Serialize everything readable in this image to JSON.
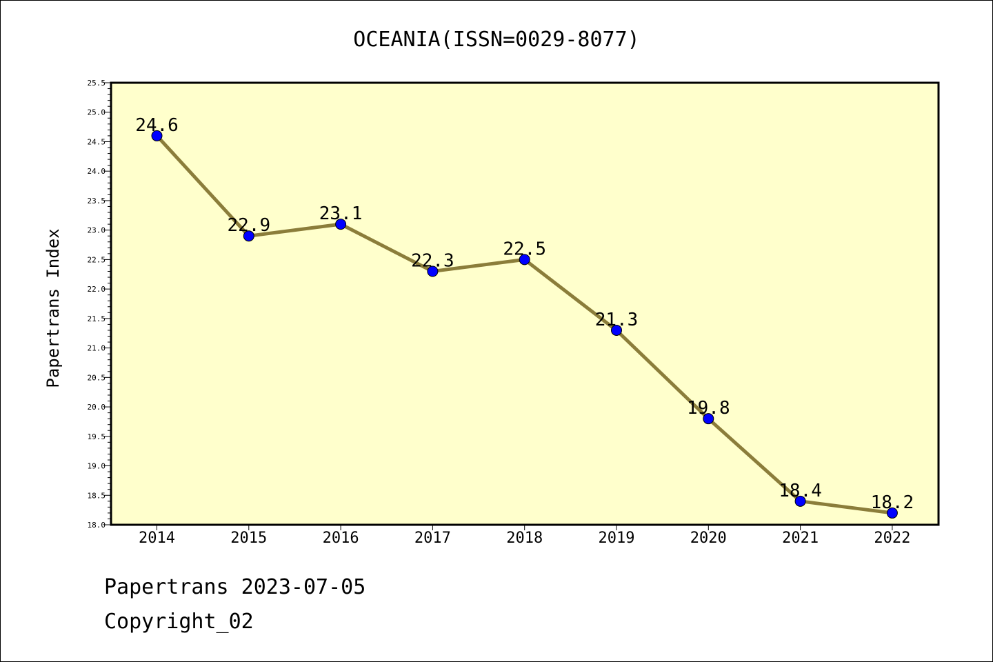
{
  "chart_data": {
    "type": "line",
    "title": "OCEANIA(ISSN=0029-8077)",
    "xlabel": "",
    "ylabel": "Papertrans Index",
    "categories": [
      "2014",
      "2015",
      "2016",
      "2017",
      "2018",
      "2019",
      "2020",
      "2021",
      "2022"
    ],
    "series": [
      {
        "values": [
          24.6,
          22.9,
          23.1,
          22.3,
          22.5,
          21.3,
          19.8,
          18.4,
          18.2
        ],
        "data_labels": [
          "24.6",
          "22.9",
          "23.1",
          "22.3",
          "22.5",
          "21.3",
          "19.8",
          "18.4",
          "18.2"
        ]
      }
    ],
    "ylim": [
      18.0,
      25.5
    ],
    "yticks": [
      "18.0",
      "18.5",
      "19.0",
      "19.5",
      "20.0",
      "20.5",
      "21.0",
      "21.5",
      "22.0",
      "22.5",
      "23.0",
      "23.5",
      "24.0",
      "24.5",
      "25.0",
      "25.5"
    ],
    "grid": false,
    "legend": "none",
    "colors": {
      "plot_background": "#ffffcc",
      "line": "#8b7d3a",
      "marker": "#0000ff",
      "axis": "#000000"
    }
  },
  "footer": {
    "date_line": "Papertrans 2023-07-05",
    "copyright": "Copyright_02"
  }
}
